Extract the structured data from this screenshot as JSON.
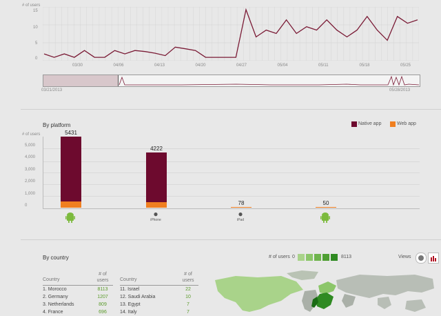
{
  "timeline": {
    "y_axis_label": "# of users",
    "y_ticks": [
      "15",
      "10",
      "5",
      "0"
    ],
    "x_ticks": [
      "03/30",
      "04/06",
      "04/13",
      "04/20",
      "04/27",
      "05/04",
      "05/11",
      "05/18",
      "05/25"
    ],
    "navigator_start": "03/21/2013",
    "navigator_end": "05/28/2013",
    "line_color": "#7a1a35"
  },
  "platform": {
    "title": "By platform",
    "legend_native": "Native app",
    "legend_web": "Web app",
    "y_axis_label": "# of users",
    "y_ticks": [
      "5,000",
      "4,000",
      "3,000",
      "2,000",
      "1,000",
      "0"
    ],
    "native_color": "#6d0a2e",
    "web_color": "#f07f20"
  },
  "chart_data": [
    {
      "type": "line",
      "title": "",
      "ylabel": "# of users",
      "ylim": [
        0,
        15
      ],
      "x": [
        "03/21",
        "03/24",
        "03/26",
        "03/28",
        "03/30",
        "04/01",
        "04/03",
        "04/05",
        "04/06",
        "04/07",
        "04/09",
        "04/13",
        "04/17",
        "04/19",
        "04/20",
        "04/22",
        "04/24",
        "04/27",
        "05/02",
        "05/03",
        "05/04",
        "05/05",
        "05/07",
        "05/09",
        "05/10",
        "05/12",
        "05/13",
        "05/14",
        "05/16",
        "05/18",
        "05/19",
        "05/21",
        "05/23",
        "05/24",
        "05/25",
        "05/26",
        "05/27",
        "05/28"
      ],
      "series": [
        {
          "values": [
            2,
            1,
            2,
            1,
            3,
            1,
            1,
            3,
            2,
            3,
            2.7,
            2.2,
            1.5,
            4,
            3.5,
            3,
            1,
            1,
            1,
            1,
            15,
            7,
            9,
            8,
            12,
            8,
            10,
            9,
            12,
            9,
            7,
            9,
            13,
            9,
            6,
            13,
            11,
            12
          ]
        }
      ]
    },
    {
      "type": "bar",
      "title": "By platform",
      "ylabel": "# of users",
      "ylim": [
        0,
        5500
      ],
      "categories": [
        "Android",
        "iPhone",
        "iPad",
        "Android"
      ],
      "series": [
        {
          "name": "Native app",
          "values": [
            4950,
            3780,
            0,
            0
          ]
        },
        {
          "name": "Web app",
          "values": [
            481,
            442,
            78,
            50
          ]
        }
      ],
      "totals": [
        "5431",
        "4222",
        "78",
        "50"
      ],
      "legend": "top-right"
    }
  ],
  "country": {
    "title": "By country",
    "scale_label": "# of users",
    "scale_min": "0",
    "scale_max": "8113",
    "scale_colors": [
      "#a9d38a",
      "#8cc66a",
      "#6fb44d",
      "#4f9f33",
      "#2f8a22"
    ],
    "views_label": "Views",
    "col_country": "Country",
    "col_users_line1": "# of",
    "col_users_line2": "users",
    "left": [
      {
        "name": "1. Morocco",
        "value": "8113"
      },
      {
        "name": "2. Germany",
        "value": "1207"
      },
      {
        "name": "3. Netherlands",
        "value": "809"
      },
      {
        "name": "4. France",
        "value": "696"
      }
    ],
    "right": [
      {
        "name": "11. Israel",
        "value": "22"
      },
      {
        "name": "12. Saudi Arabia",
        "value": "10"
      },
      {
        "name": "13. Egypt",
        "value": "7"
      },
      {
        "name": "14. Italy",
        "value": "7"
      }
    ],
    "iphone_label": "iPhone",
    "ipad_label": "iPad"
  }
}
